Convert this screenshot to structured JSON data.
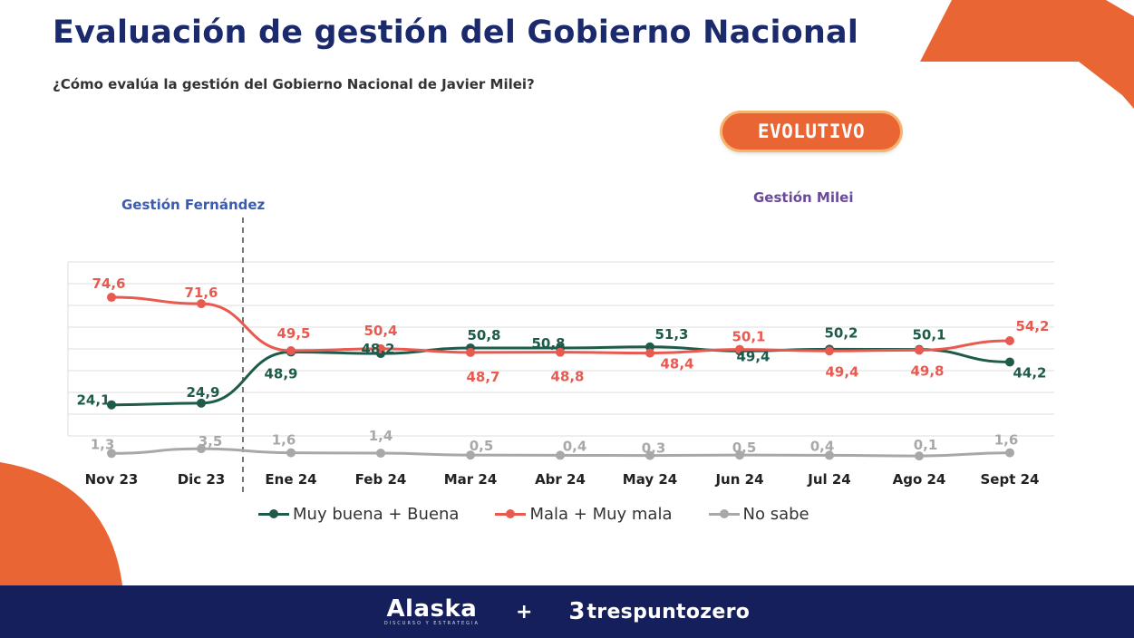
{
  "header": {
    "title": "Evaluación de gestión del Gobierno Nacional",
    "subtitle": "¿Cómo evalúa la gestión del Gobierno Nacional de Javier Milei?",
    "badge": "EVOLUTIVO"
  },
  "eras": {
    "left": "Gestión Fernández",
    "right": "Gestión Milei"
  },
  "colors": {
    "title": "#1a2a6c",
    "accent_orange": "#e96534",
    "footer_bg": "#141f5c",
    "era_left": "#3a5bb0",
    "era_right": "#6a4a9a"
  },
  "chart_data": {
    "type": "line",
    "categories": [
      "Nov 23",
      "Dic 23",
      "Ene 24",
      "Feb 24",
      "Mar 24",
      "Abr 24",
      "May 24",
      "Jun 24",
      "Jul 24",
      "Ago 24",
      "Sept 24"
    ],
    "series": [
      {
        "name": "Muy buena + Buena",
        "color": "#1e5b4a",
        "values": [
          24.1,
          24.9,
          48.9,
          48.2,
          50.8,
          50.8,
          51.3,
          49.4,
          50.2,
          50.1,
          44.2
        ],
        "labels": [
          "24,1",
          "24,9",
          "48,9",
          "48,2",
          "50,8",
          "50,8",
          "51,3",
          "49,4",
          "50,2",
          "50,1",
          "44,2"
        ]
      },
      {
        "name": "Mala + Muy mala",
        "color": "#e85a50",
        "values": [
          74.6,
          71.6,
          49.5,
          50.4,
          48.7,
          48.8,
          48.4,
          50.1,
          49.4,
          49.8,
          54.2
        ],
        "labels": [
          "74,6",
          "71,6",
          "49,5",
          "50,4",
          "48,7",
          "48,8",
          "48,4",
          "50,1",
          "49,4",
          "49,8",
          "54,2"
        ]
      },
      {
        "name": "No sabe",
        "color": "#a8a8a8",
        "values": [
          1.3,
          3.5,
          1.6,
          1.4,
          0.5,
          0.4,
          0.3,
          0.5,
          0.4,
          0.1,
          1.6
        ],
        "labels": [
          "1,3",
          "3,5",
          "1,6",
          "1,4",
          "0,5",
          "0,4",
          "0,3",
          "0,5",
          "0,4",
          "0,1",
          "1,6"
        ]
      }
    ],
    "ylim": [
      0,
      85
    ],
    "grid": true,
    "legend_position": "bottom",
    "divider_after": "Dic 23"
  },
  "legend": {
    "items": [
      "Muy buena + Buena",
      "Mala + Muy mala",
      "No sabe"
    ]
  },
  "footer": {
    "logo_left": "Alaska",
    "logo_left_sub": "DISCURSO Y ESTRATEGIA",
    "plus": "+",
    "logo_right_num": "3",
    "logo_right_word": "trespuntozero"
  }
}
